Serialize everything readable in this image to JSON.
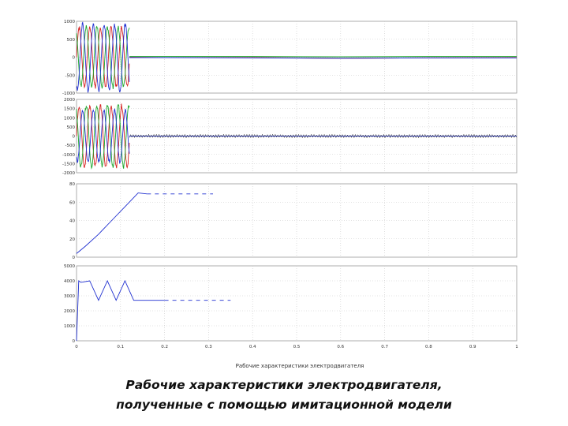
{
  "caption": {
    "line1": "Рабочие характеристики электродвигателя,",
    "line2": "полученные с помощью имитационной модели"
  },
  "figure_subcaption": "Рабочие характеристики электродвигателя",
  "colors": {
    "red": "#d62020",
    "green": "#1aa52a",
    "blue": "#1f2fd0",
    "black": "#333333"
  },
  "chart_data": [
    {
      "type": "line",
      "title": "",
      "xlabel": "",
      "ylabel": "",
      "xlim": [
        0,
        1
      ],
      "ylim": [
        -1000,
        1000
      ],
      "yticks": [
        "1000",
        "500",
        "0",
        "-500",
        "-1000"
      ],
      "series": [
        {
          "color": "red",
          "x": [
            0,
            0.05,
            0.1,
            0.12,
            0.2,
            0.4,
            0.6,
            0.8,
            1.0
          ],
          "y": [
            0,
            900,
            -900,
            0,
            -10,
            -10,
            -30,
            -20,
            -10
          ]
        },
        {
          "color": "green",
          "x": [
            0,
            0.05,
            0.1,
            0.12,
            0.2,
            0.4,
            0.6,
            0.8,
            1.0
          ],
          "y": [
            0,
            -900,
            900,
            20,
            20,
            20,
            10,
            20,
            20
          ]
        },
        {
          "color": "blue",
          "x": [
            0,
            0.05,
            0.1,
            0.12,
            0.2,
            0.4,
            0.6,
            0.8,
            1.0
          ],
          "y": [
            0,
            -1000,
            1000,
            -10,
            -10,
            -20,
            -30,
            -20,
            -20
          ]
        }
      ],
      "note_transient_end_x": 0.12
    },
    {
      "type": "line",
      "title": "",
      "xlabel": "",
      "ylabel": "",
      "xlim": [
        0,
        1
      ],
      "ylim": [
        -2000,
        2000
      ],
      "yticks": [
        "2000",
        "1500",
        "1000",
        "500",
        "0",
        "-500",
        "-1000",
        "-1500",
        "-2000"
      ],
      "series": [
        {
          "color": "red",
          "x": [
            0,
            0.05,
            0.1,
            0.12,
            1.0
          ],
          "y": [
            0,
            1800,
            -1800,
            0,
            0
          ]
        },
        {
          "color": "green",
          "x": [
            0,
            0.05,
            0.1,
            0.12,
            1.0
          ],
          "y": [
            0,
            -1800,
            1800,
            0,
            0
          ]
        },
        {
          "color": "blue",
          "x": [
            0,
            0.05,
            0.1,
            0.12,
            1.0
          ],
          "y": [
            0,
            1500,
            -1500,
            0,
            0
          ]
        },
        {
          "color": "black",
          "x": [
            0.12,
            1.0
          ],
          "y": [
            -100,
            100
          ]
        }
      ],
      "note_black_band": true
    },
    {
      "type": "line",
      "title": "",
      "xlabel": "",
      "ylabel": "",
      "xlim": [
        0,
        1
      ],
      "ylim": [
        0,
        80
      ],
      "yticks": [
        "80",
        "60",
        "40",
        "20",
        "0"
      ],
      "series": [
        {
          "color": "blue",
          "x": [
            0,
            0.02,
            0.05,
            0.08,
            0.11,
            0.14,
            0.16,
            0.2,
            0.25,
            0.31
          ],
          "y": [
            4,
            12,
            25,
            40,
            55,
            70,
            69,
            69,
            69,
            69
          ]
        }
      ]
    },
    {
      "type": "line",
      "title": "",
      "xlabel": "",
      "ylabel": "",
      "xlim": [
        0,
        1
      ],
      "ylim": [
        0,
        5000
      ],
      "yticks": [
        "5000",
        "4000",
        "3000",
        "2000",
        "1000",
        "0"
      ],
      "xticks": [
        "0",
        "0.1",
        "0.2",
        "0.3",
        "0.4",
        "0.5",
        "0.6",
        "0.7",
        "0.8",
        "0.9",
        "1"
      ],
      "series": [
        {
          "color": "blue",
          "x": [
            0,
            0.005,
            0.01,
            0.03,
            0.05,
            0.07,
            0.09,
            0.11,
            0.13,
            0.2,
            0.25,
            0.35
          ],
          "y": [
            0,
            4000,
            3900,
            4000,
            2700,
            4000,
            2700,
            4000,
            2700,
            2700,
            2700,
            2700
          ]
        }
      ]
    }
  ]
}
